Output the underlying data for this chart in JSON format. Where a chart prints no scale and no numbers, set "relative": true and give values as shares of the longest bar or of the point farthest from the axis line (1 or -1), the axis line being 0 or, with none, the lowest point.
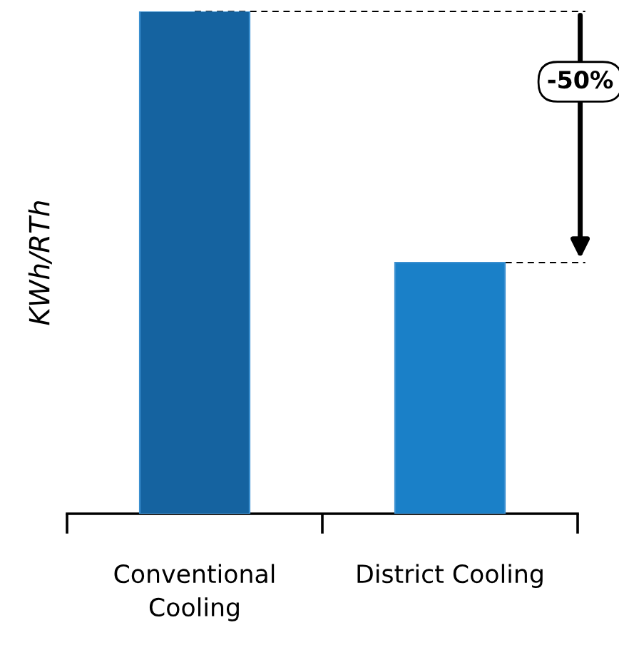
{
  "chart_data": {
    "type": "bar",
    "ylabel": "KWh/RTh",
    "categories": [
      "Conventional Cooling",
      "District Cooling"
    ],
    "values": [
      1,
      0.5
    ],
    "colors": [
      "#1563a0",
      "#1a80c8"
    ],
    "relative": true,
    "ref_lines": [
      {
        "axis": "y",
        "value": 1,
        "color": "#000000",
        "line_style": "dashed"
      },
      {
        "axis": "y",
        "value": 0.5,
        "color": "#000000",
        "line_style": "dashed"
      }
    ],
    "annotations": [
      "-50%"
    ],
    "grid": false,
    "legend": false
  }
}
